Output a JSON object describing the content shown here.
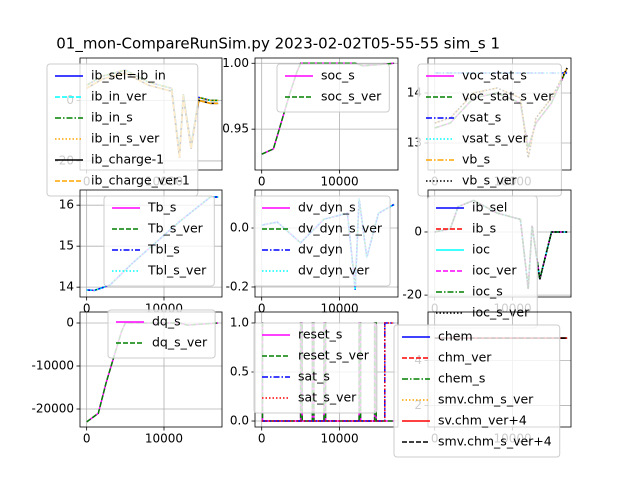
{
  "title": "01_mon-CompareRunSim.py   2023-02-02T05-55-55 sim_s 1",
  "chart_data": [
    {
      "type": "line",
      "grid": true,
      "xlim": [
        -860,
        17500
      ],
      "ylim": [
        -23,
        14
      ],
      "xticks": [
        0,
        10000
      ],
      "yticks": [
        -20,
        0
      ],
      "x": [
        0,
        2000,
        5000,
        8000,
        11000,
        12000,
        12500,
        13500,
        14500,
        16000,
        17000
      ],
      "series": [
        {
          "name": "ib_sel=ib_in",
          "color": "#0000ff",
          "linestyle": "-",
          "values": [
            5,
            8,
            10,
            6,
            4,
            -18,
            2,
            -15,
            1,
            0,
            0
          ]
        },
        {
          "name": "ib_in_ver",
          "color": "#00ffff",
          "linestyle": "--",
          "values": [
            5,
            8,
            10,
            6,
            4,
            -18,
            2,
            -15,
            1,
            0,
            0
          ]
        },
        {
          "name": "ib_in_s",
          "color": "#008000",
          "linestyle": "-.",
          "values": [
            5,
            8,
            10,
            6,
            4,
            -18,
            2,
            -15,
            1,
            0,
            0
          ]
        },
        {
          "name": "ib_in_s_ver",
          "color": "#ffa500",
          "linestyle": ":",
          "values": [
            5,
            8,
            10,
            6,
            4,
            -18,
            2,
            -15,
            1,
            0,
            0
          ]
        },
        {
          "name": "ib_charge-1",
          "color": "#000000",
          "linestyle": "-",
          "values": [
            4,
            7,
            9,
            5,
            3,
            -19,
            1,
            -16,
            0,
            -1,
            -1
          ]
        },
        {
          "name": "ib_charge_ver-1",
          "color": "#ffa500",
          "linestyle": "--",
          "values": [
            4,
            7,
            9,
            5,
            3,
            -19,
            1,
            -16,
            0,
            -1,
            -1
          ]
        }
      ]
    },
    {
      "type": "line",
      "grid": true,
      "xlim": [
        -860,
        17500
      ],
      "ylim": [
        0.919,
        1.004
      ],
      "xticks": [
        0,
        10000
      ],
      "yticks": [
        0.95,
        {
          "value": 1,
          "label": "1.00"
        }
      ],
      "x": [
        0,
        1500,
        2500,
        3500,
        4500,
        5000,
        12000,
        13000,
        17000
      ],
      "series": [
        {
          "name": "soc_s",
          "color": "#ff00ff",
          "linestyle": "-",
          "values": [
            0.931,
            0.935,
            0.955,
            0.975,
            0.993,
            1.0,
            1.0,
            0.998,
            1.0
          ]
        },
        {
          "name": "soc_s_ver",
          "color": "#008000",
          "linestyle": "--",
          "values": [
            0.931,
            0.935,
            0.955,
            0.975,
            0.993,
            1.0,
            1.0,
            0.998,
            1.0
          ]
        }
      ]
    },
    {
      "type": "line",
      "grid": true,
      "xlim": [
        -860,
        17500
      ],
      "ylim": [
        12.46,
        14.7
      ],
      "xticks": [
        0,
        10000
      ],
      "yticks": [
        13,
        14
      ],
      "x": [
        0,
        2000,
        5000,
        8000,
        11000,
        12000,
        13000,
        15000,
        17000
      ],
      "series": [
        {
          "name": "voc_stat_s",
          "color": "#ff00ff",
          "linestyle": "-",
          "values": [
            13.3,
            13.4,
            13.9,
            14.0,
            13.8,
            12.9,
            13.4,
            13.8,
            14.5
          ]
        },
        {
          "name": "voc_stat_s_ver",
          "color": "#008000",
          "linestyle": "--",
          "values": [
            13.3,
            13.4,
            13.9,
            14.0,
            13.8,
            12.9,
            13.4,
            13.8,
            14.5
          ]
        },
        {
          "name": "vsat_s",
          "color": "#0000ff",
          "linestyle": "-.",
          "values": [
            14.4,
            14.4,
            14.4,
            14.4,
            14.4,
            14.4,
            14.4,
            14.4,
            14.4
          ]
        },
        {
          "name": "vsat_s_ver",
          "color": "#00ffff",
          "linestyle": ":",
          "values": [
            14.4,
            14.4,
            14.4,
            14.4,
            14.4,
            14.4,
            14.4,
            14.4,
            14.4
          ]
        },
        {
          "name": "vb_s",
          "color": "#ffa500",
          "linestyle": "-.",
          "values": [
            13.4,
            13.5,
            14.0,
            14.1,
            13.9,
            12.7,
            13.5,
            13.9,
            14.5
          ]
        },
        {
          "name": "vb_s_ver",
          "color": "#000000",
          "linestyle": ":",
          "values": [
            13.4,
            13.5,
            14.0,
            14.1,
            13.9,
            12.7,
            13.5,
            13.9,
            14.5
          ]
        }
      ]
    },
    {
      "type": "line",
      "grid": true,
      "xlim": [
        -860,
        17500
      ],
      "ylim": [
        13.76,
        16.37
      ],
      "xticks": [
        0,
        10000
      ],
      "yticks": [
        14,
        15,
        16
      ],
      "x": [
        0,
        1000,
        3000,
        6000,
        9000,
        12000,
        14000,
        16000,
        17000
      ],
      "series": [
        {
          "name": "Tb_s",
          "color": "#ff00ff",
          "linestyle": "-",
          "values": [
            13.93,
            13.92,
            14.05,
            14.6,
            15.1,
            15.6,
            15.9,
            16.2,
            16.2
          ]
        },
        {
          "name": "Tb_s_ver",
          "color": "#008000",
          "linestyle": "--",
          "values": [
            13.93,
            13.92,
            14.05,
            14.6,
            15.1,
            15.6,
            15.9,
            16.2,
            16.2
          ]
        },
        {
          "name": "Tbl_s",
          "color": "#0000ff",
          "linestyle": "-.",
          "values": [
            13.93,
            13.92,
            14.05,
            14.6,
            15.1,
            15.6,
            15.9,
            16.2,
            16.2
          ]
        },
        {
          "name": "Tbl_s_ver",
          "color": "#00ffff",
          "linestyle": ":",
          "values": [
            13.93,
            13.92,
            14.05,
            14.6,
            15.1,
            15.6,
            15.9,
            16.2,
            16.2
          ]
        }
      ]
    },
    {
      "type": "line",
      "grid": true,
      "xlim": [
        -860,
        17500
      ],
      "ylim": [
        -0.234,
        0.129
      ],
      "xticks": [
        0,
        10000
      ],
      "yticks": [
        {
          "value": -0.2,
          "label": "-0.2"
        },
        {
          "value": 0,
          "label": "0.0"
        }
      ],
      "x": [
        0,
        2000,
        5000,
        8000,
        11000,
        12000,
        12500,
        13500,
        15000,
        17000
      ],
      "series": [
        {
          "name": "dv_dyn_s",
          "color": "#ff00ff",
          "linestyle": "-",
          "values": [
            0.01,
            0.02,
            -0.05,
            0.03,
            0.05,
            -0.2,
            0.1,
            -0.1,
            0.05,
            0.08
          ]
        },
        {
          "name": "dv_dyn_s_ver",
          "color": "#008000",
          "linestyle": "--",
          "values": [
            0.01,
            0.02,
            -0.05,
            0.03,
            0.05,
            -0.2,
            0.1,
            -0.1,
            0.05,
            0.08
          ]
        },
        {
          "name": "dv_dyn",
          "color": "#0000ff",
          "linestyle": "-.",
          "values": [
            0.01,
            0.02,
            -0.05,
            0.03,
            0.05,
            -0.21,
            0.1,
            -0.1,
            0.05,
            0.08
          ]
        },
        {
          "name": "dv_dyn_ver",
          "color": "#00ffff",
          "linestyle": ":",
          "values": [
            0.01,
            0.02,
            -0.05,
            0.03,
            0.05,
            -0.21,
            0.1,
            -0.1,
            0.05,
            0.08
          ]
        }
      ]
    },
    {
      "type": "line",
      "grid": true,
      "xlim": [
        -860,
        17500
      ],
      "ylim": [
        -20.6,
        13.3
      ],
      "xticks": [
        0,
        10000
      ],
      "yticks": [
        -20,
        0
      ],
      "x": [
        0,
        2000,
        3000,
        5000,
        8000,
        11000,
        12000,
        12500,
        13500,
        15000,
        17000
      ],
      "series": [
        {
          "name": "ib_sel",
          "color": "#0000ff",
          "linestyle": "-",
          "values": [
            0,
            1,
            8,
            10,
            6,
            4,
            -18,
            2,
            -15,
            0,
            0
          ]
        },
        {
          "name": "ib_s",
          "color": "#ff0000",
          "linestyle": "--",
          "values": [
            0,
            1,
            8,
            10,
            6,
            4,
            -18,
            2,
            -15,
            0,
            0
          ]
        },
        {
          "name": "ioc",
          "color": "#00ffff",
          "linestyle": "-",
          "values": [
            0,
            1,
            8,
            10,
            6,
            4,
            -18,
            2,
            -15,
            0,
            0
          ]
        },
        {
          "name": "ioc_ver",
          "color": "#ff00ff",
          "linestyle": "--",
          "values": [
            0,
            1,
            8,
            10,
            6,
            4,
            -18,
            2,
            -15,
            0,
            0
          ]
        },
        {
          "name": "ioc_s",
          "color": "#008000",
          "linestyle": "-.",
          "values": [
            0,
            1,
            8,
            10,
            6,
            4,
            -18,
            2,
            -15,
            0,
            0
          ]
        },
        {
          "name": "ioc_s_ver",
          "color": "#000000",
          "linestyle": ":",
          "values": [
            0,
            1,
            8,
            10,
            6,
            4,
            -18,
            2,
            -15,
            0,
            0
          ]
        }
      ]
    },
    {
      "type": "line",
      "grid": true,
      "xlim": [
        -860,
        17500
      ],
      "ylim": [
        -24186,
        2558
      ],
      "xticks": [
        0,
        10000
      ],
      "yticks": [
        -20000,
        -10000,
        0
      ],
      "x": [
        0,
        1500,
        2500,
        3500,
        4500,
        5000,
        12000,
        13000,
        17000
      ],
      "series": [
        {
          "name": "dq_s",
          "color": "#ff00ff",
          "linestyle": "-",
          "values": [
            -23000,
            -21000,
            -14000,
            -8000,
            -2000,
            0,
            0,
            -500,
            0
          ]
        },
        {
          "name": "dq_s_ver",
          "color": "#008000",
          "linestyle": "--",
          "values": [
            -23000,
            -21000,
            -14000,
            -8000,
            -2000,
            0,
            0,
            -500,
            0
          ]
        }
      ]
    },
    {
      "type": "line",
      "grid": true,
      "xlim": [
        -860,
        17500
      ],
      "ylim": [
        -0.061,
        1.112
      ],
      "xticks": [
        0,
        10000
      ],
      "yticks": [
        {
          "value": 0,
          "label": "0.0"
        },
        0.5,
        {
          "value": 1,
          "label": "1.0"
        }
      ],
      "x": [
        0,
        100,
        100,
        5000,
        5000,
        5200,
        5200,
        6500,
        6500,
        6700,
        6700,
        8000,
        8000,
        8200,
        8200,
        12500,
        12500,
        12700,
        12700,
        14500,
        14500,
        14700,
        14700,
        15800,
        15800,
        17000
      ],
      "series": [
        {
          "name": "reset_s",
          "color": "#ff00ff",
          "linestyle": "-",
          "values": [
            1,
            1,
            0,
            0,
            1,
            1,
            0,
            0,
            1,
            1,
            0,
            0,
            1,
            1,
            0,
            0,
            1,
            1,
            0,
            0,
            1,
            1,
            0,
            0,
            0,
            0
          ]
        },
        {
          "name": "reset_s_ver",
          "color": "#008000",
          "linestyle": "--",
          "values": [
            1,
            1,
            0,
            0,
            1,
            1,
            0,
            0,
            1,
            1,
            0,
            0,
            1,
            1,
            0,
            0,
            1,
            1,
            0,
            0,
            1,
            1,
            0,
            0,
            0,
            0
          ]
        },
        {
          "name": "sat_s",
          "color": "#0000ff",
          "linestyle": "-.",
          "values": [
            0,
            0,
            0,
            0,
            0,
            0,
            0,
            0,
            0,
            0,
            0,
            0,
            0,
            0,
            0,
            0,
            0,
            0,
            0,
            0,
            0,
            0,
            0,
            0,
            1,
            1
          ]
        },
        {
          "name": "sat_s_ver",
          "color": "#ff0000",
          "linestyle": ":",
          "values": [
            0,
            0,
            0,
            0,
            0,
            0,
            0,
            0,
            0,
            0,
            0,
            0,
            0,
            0,
            0,
            0,
            0,
            0,
            0,
            0,
            0,
            0,
            0,
            0,
            1,
            1
          ]
        }
      ]
    },
    {
      "type": "line",
      "grid": true,
      "xlim": [
        -860,
        17500
      ],
      "ylim": [
        1.04,
        6.16
      ],
      "xticks": [
        0,
        10000
      ],
      "yticks": [
        2,
        4
      ],
      "x": [
        0,
        17000
      ],
      "series": [
        {
          "name": "chem",
          "color": "#0000ff",
          "linestyle": "-",
          "values": [
            5,
            5
          ]
        },
        {
          "name": "chm_ver",
          "color": "#ff0000",
          "linestyle": "--",
          "values": [
            5,
            5
          ]
        },
        {
          "name": "chem_s",
          "color": "#008000",
          "linestyle": "-.",
          "values": [
            5,
            5
          ]
        },
        {
          "name": "smv.chm_s_ver",
          "color": "#ffa500",
          "linestyle": ":",
          "values": [
            5,
            5
          ]
        },
        {
          "name": "sv.chm_ver+4",
          "color": "#ff0000",
          "linestyle": "-",
          "values": [
            5,
            5
          ]
        },
        {
          "name": "smv.chm_s_ver+4",
          "color": "#000000",
          "linestyle": "--",
          "values": [
            5,
            5
          ]
        }
      ]
    }
  ]
}
